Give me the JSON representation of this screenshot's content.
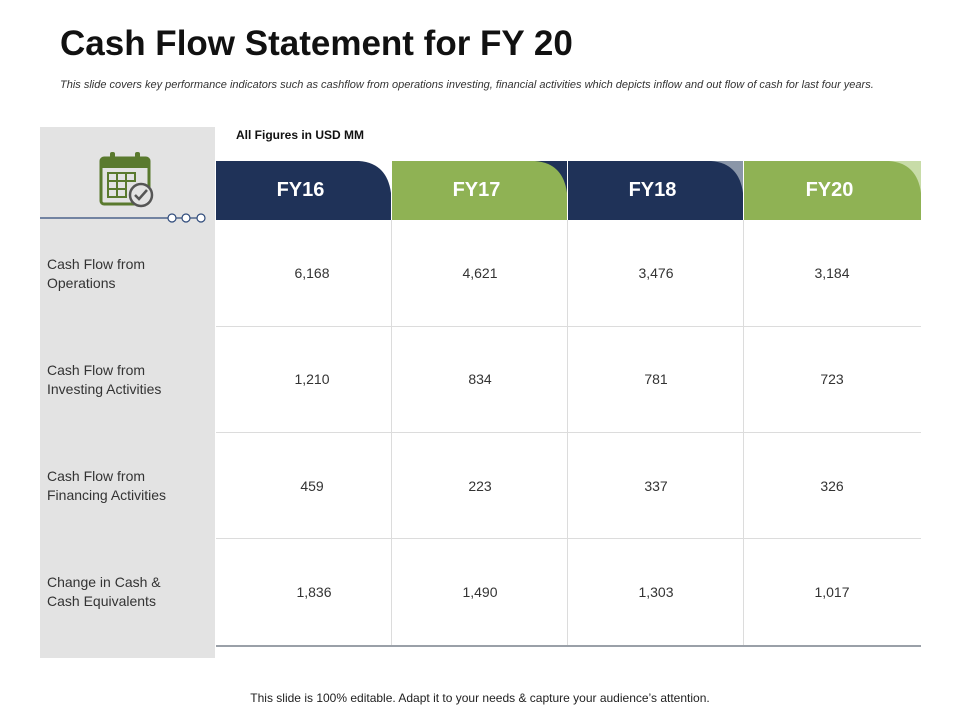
{
  "title": "Cash Flow Statement for FY 20",
  "subtitle": "This slide covers key performance indicators such as cashflow from operations investing, financial activities  which depicts inflow and out flow of cash for last four years.",
  "units_note": "All Figures in USD MM",
  "icons": {
    "panel": "calendar-check-icon"
  },
  "colors": {
    "navy": "#1f3258",
    "green": "#8fb254",
    "panel": "#e3e3e3"
  },
  "table": {
    "columns": [
      "FY16",
      "FY17",
      "FY18",
      "FY20"
    ],
    "rows": [
      {
        "label_line1": "Cash Flow from",
        "label_line2": "Operations",
        "values": [
          "6,168",
          "4,621",
          "3,476",
          "3,184"
        ]
      },
      {
        "label_line1": "Cash Flow from",
        "label_line2": "Investing Activities",
        "values": [
          "1,210",
          "834",
          "781",
          "723"
        ]
      },
      {
        "label_line1": "Cash Flow from",
        "label_line2": "Financing Activities",
        "values": [
          "459",
          "223",
          "337",
          "326"
        ]
      },
      {
        "label_line1": "Change in Cash &",
        "label_line2": "Cash Equivalents",
        "values": [
          "1,836",
          "1,490",
          "1,303",
          "1,017"
        ]
      }
    ]
  },
  "footer": "This slide is 100% editable. Adapt it to your needs & capture your audience’s attention."
}
